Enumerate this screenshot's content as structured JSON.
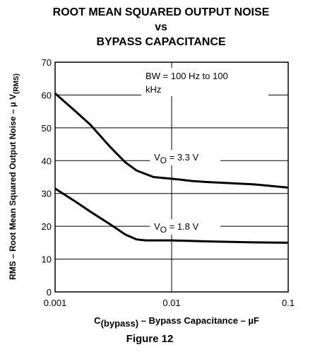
{
  "chart_data": {
    "type": "line",
    "title": [
      "ROOT MEAN SQUARED OUTPUT NOISE",
      "vs",
      "BYPASS CAPACITANCE"
    ],
    "ylabel": [
      "RMS – Root Mean Squared Output Noise – µ V",
      "(RMS)"
    ],
    "xlabel": [
      "C",
      "(bypass)",
      " – Bypass Capacitance – µF"
    ],
    "caption": "Figure 12",
    "annotation": [
      "BW = 100 Hz to 100",
      "kHz"
    ],
    "xscale": "log",
    "xlim": [
      0.001,
      0.1
    ],
    "xticks": [
      0.001,
      0.01,
      0.1
    ],
    "ylim": [
      0,
      70
    ],
    "yticks": [
      0,
      10,
      20,
      30,
      40,
      50,
      60,
      70
    ],
    "grid": true,
    "series": [
      {
        "label": [
          "V",
          "O",
          " = 3.3 V"
        ],
        "color": "#000000",
        "x": [
          0.001,
          0.0015,
          0.002,
          0.003,
          0.004,
          0.005,
          0.007,
          0.01,
          0.015,
          0.02,
          0.05,
          0.1
        ],
        "values": [
          60.5,
          55,
          51,
          44,
          39.5,
          37,
          35,
          34.5,
          33.8,
          33.5,
          32.8,
          31.8
        ]
      },
      {
        "label": [
          "V",
          "O",
          " = 1.8 V"
        ],
        "color": "#000000",
        "x": [
          0.001,
          0.0015,
          0.002,
          0.003,
          0.004,
          0.005,
          0.006,
          0.01,
          0.02,
          0.05,
          0.1
        ],
        "values": [
          31.5,
          27.5,
          24.5,
          20.5,
          17.5,
          16,
          15.7,
          15.7,
          15.4,
          15.1,
          15
        ]
      }
    ]
  }
}
